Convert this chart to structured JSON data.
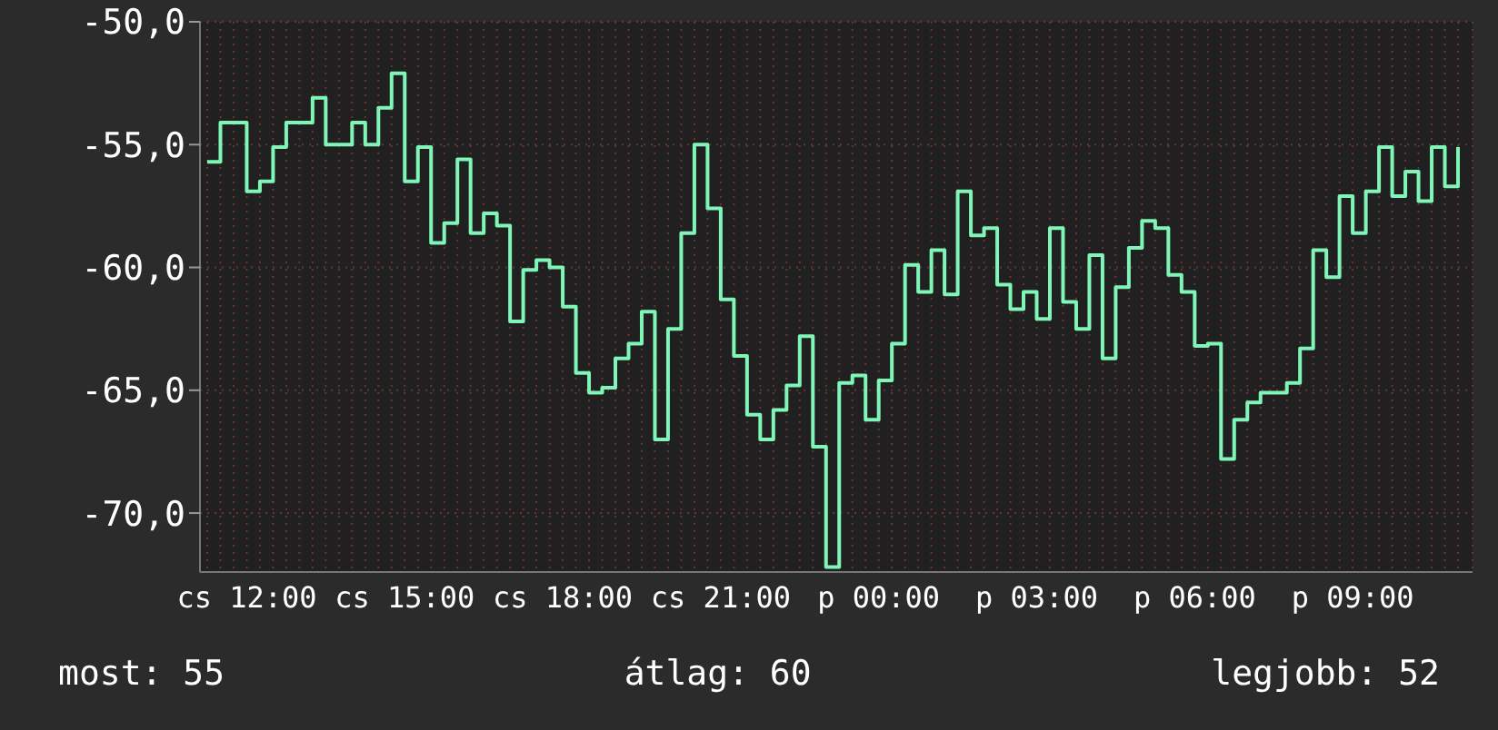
{
  "chart_data": {
    "type": "step",
    "color": "#80f5b8",
    "categories": [
      null,
      null,
      null,
      "cs 12:00",
      null,
      null,
      null,
      null,
      null,
      null,
      null,
      null,
      null,
      null,
      null,
      "cs 15:00",
      null,
      null,
      null,
      null,
      null,
      null,
      null,
      null,
      null,
      null,
      null,
      "cs 18:00",
      null,
      null,
      null,
      null,
      null,
      null,
      null,
      null,
      null,
      null,
      null,
      "cs 21:00",
      null,
      null,
      null,
      null,
      null,
      null,
      null,
      null,
      null,
      null,
      null,
      "p 00:00",
      null,
      null,
      null,
      null,
      null,
      null,
      null,
      null,
      null,
      null,
      null,
      "p 03:00",
      null,
      null,
      null,
      null,
      null,
      null,
      null,
      null,
      null,
      null,
      null,
      "p 06:00",
      null,
      null,
      null,
      null,
      null,
      null,
      null,
      null,
      null,
      null,
      null,
      "p 09:00",
      null,
      null,
      null,
      null,
      null,
      null,
      null,
      null
    ],
    "values": [
      -55.7,
      -54.1,
      -54.1,
      -56.9,
      -56.5,
      -55.1,
      -54.1,
      -54.1,
      -53.1,
      -55.0,
      -55.0,
      -54.1,
      -55.0,
      -53.5,
      -52.1,
      -56.5,
      -55.1,
      -59.0,
      -58.2,
      -55.6,
      -58.6,
      -57.8,
      -58.3,
      -62.2,
      -60.1,
      -59.7,
      -60.0,
      -61.6,
      -64.3,
      -65.1,
      -64.9,
      -63.7,
      -63.1,
      -61.8,
      -67.0,
      -62.5,
      -58.6,
      -55.0,
      -57.6,
      -61.3,
      -63.6,
      -66.0,
      -67.0,
      -65.8,
      -64.8,
      -62.8,
      -67.3,
      -72.2,
      -64.7,
      -64.4,
      -66.2,
      -64.6,
      -63.1,
      -59.9,
      -61.0,
      -59.3,
      -61.1,
      -56.9,
      -58.7,
      -58.4,
      -60.7,
      -61.7,
      -61.0,
      -62.1,
      -58.4,
      -61.4,
      -62.5,
      -59.5,
      -63.7,
      -60.8,
      -59.2,
      -58.1,
      -58.4,
      -60.3,
      -61.0,
      -63.2,
      -63.1,
      -67.8,
      -66.2,
      -65.5,
      -65.1,
      -65.1,
      -64.7,
      -63.3,
      -59.3,
      -60.4,
      -57.1,
      -58.6,
      -56.9,
      -55.1,
      -57.1,
      -56.1,
      -57.3,
      -55.1,
      -56.7,
      -55.1
    ],
    "ylim": [
      -72.4,
      -50
    ],
    "yticks": [
      {
        "value": -50,
        "label": "-50,0"
      },
      {
        "value": -55,
        "label": "-55,0"
      },
      {
        "value": -60,
        "label": "-60,0"
      },
      {
        "value": -65,
        "label": "-65,0"
      },
      {
        "value": -70,
        "label": "-70,0"
      }
    ],
    "grid": true,
    "annotations": [
      "most: 55",
      "átlag: 60",
      "legjobb: 52"
    ]
  }
}
